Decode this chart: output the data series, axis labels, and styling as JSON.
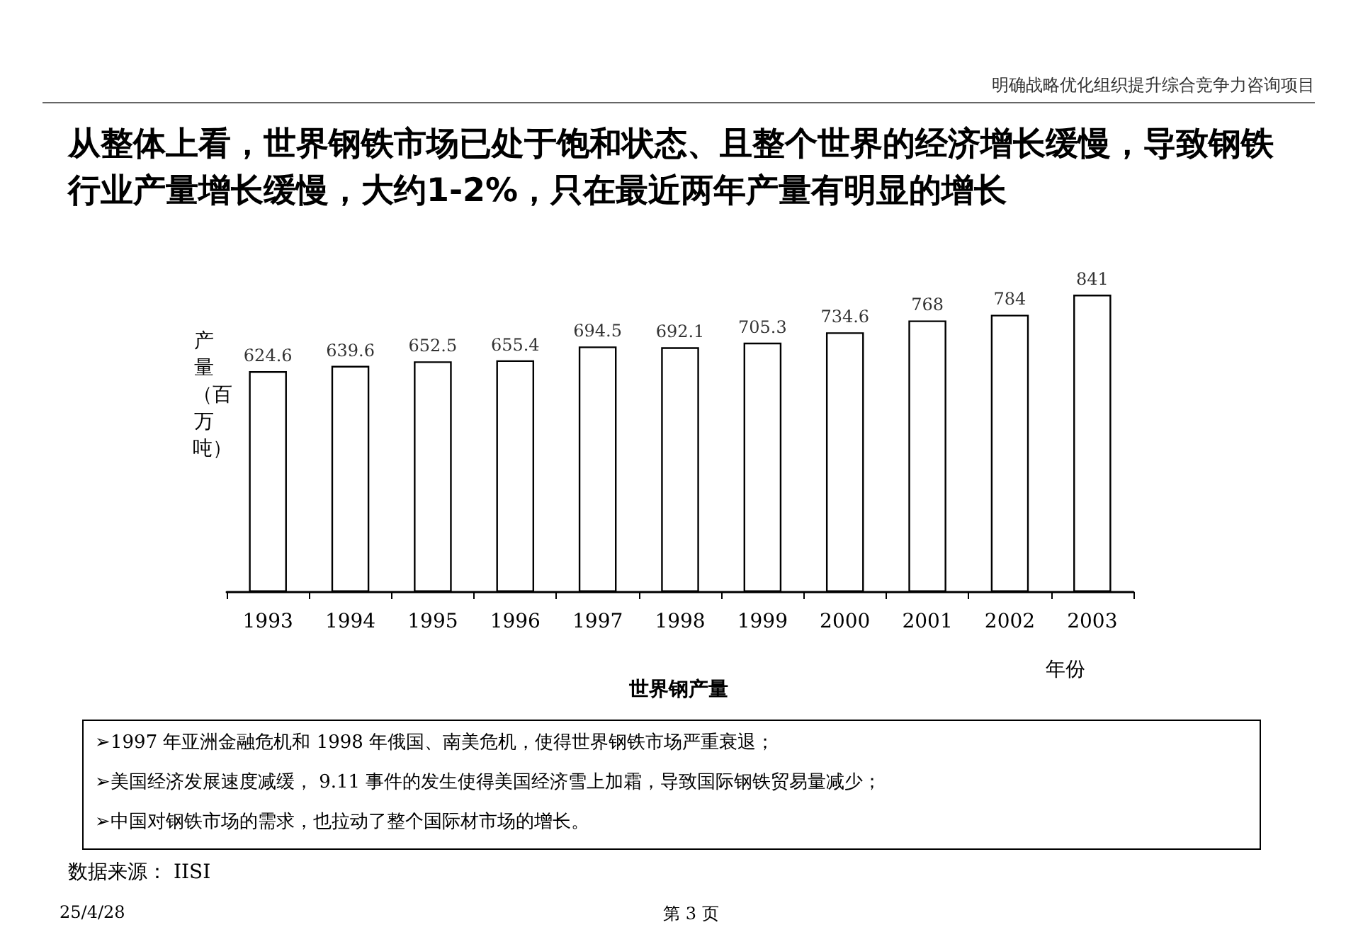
{
  "chart_data": {
    "type": "bar",
    "title": "从整体上看，世界钢铁市场已处于饱和状态、且整个世界的经济增长缓慢，导致钢铁行业产量增长缓慢，大约1-2%，只在最近两年产量有明显的增长",
    "subtitle": "世界钢产量",
    "xlabel": "年份",
    "ylabel": "产量（百万吨）",
    "categories": [
      "1993",
      "1994",
      "1995",
      "1996",
      "1997",
      "1998",
      "1999",
      "2000",
      "2001",
      "2002",
      "2003"
    ],
    "values": [
      624.6,
      639.6,
      652.5,
      655.4,
      694.5,
      692.1,
      705.3,
      734.6,
      768,
      784,
      841
    ],
    "color": "#ffffff",
    "data_labels": true,
    "grid": false,
    "tick_labels": "x",
    "annotations": [
      "明确战略优化组织提升综合竞争力咨询项目",
      "➢1997 年亚洲金融危机和 1998 年俄国、南美危机，使得世界钢铁市场严重衰退；",
      "➢美国经济发展速度减缓， 9.11 事件的发生使得美国经济雪上加霜，导致国际钢铁贸易量减少；",
      "➢中国对钢铁市场的需求，也拉动了整个国际材市场的增长。",
      "数据来源： IISI",
      "25/4/28",
      "第 3 页"
    ]
  }
}
